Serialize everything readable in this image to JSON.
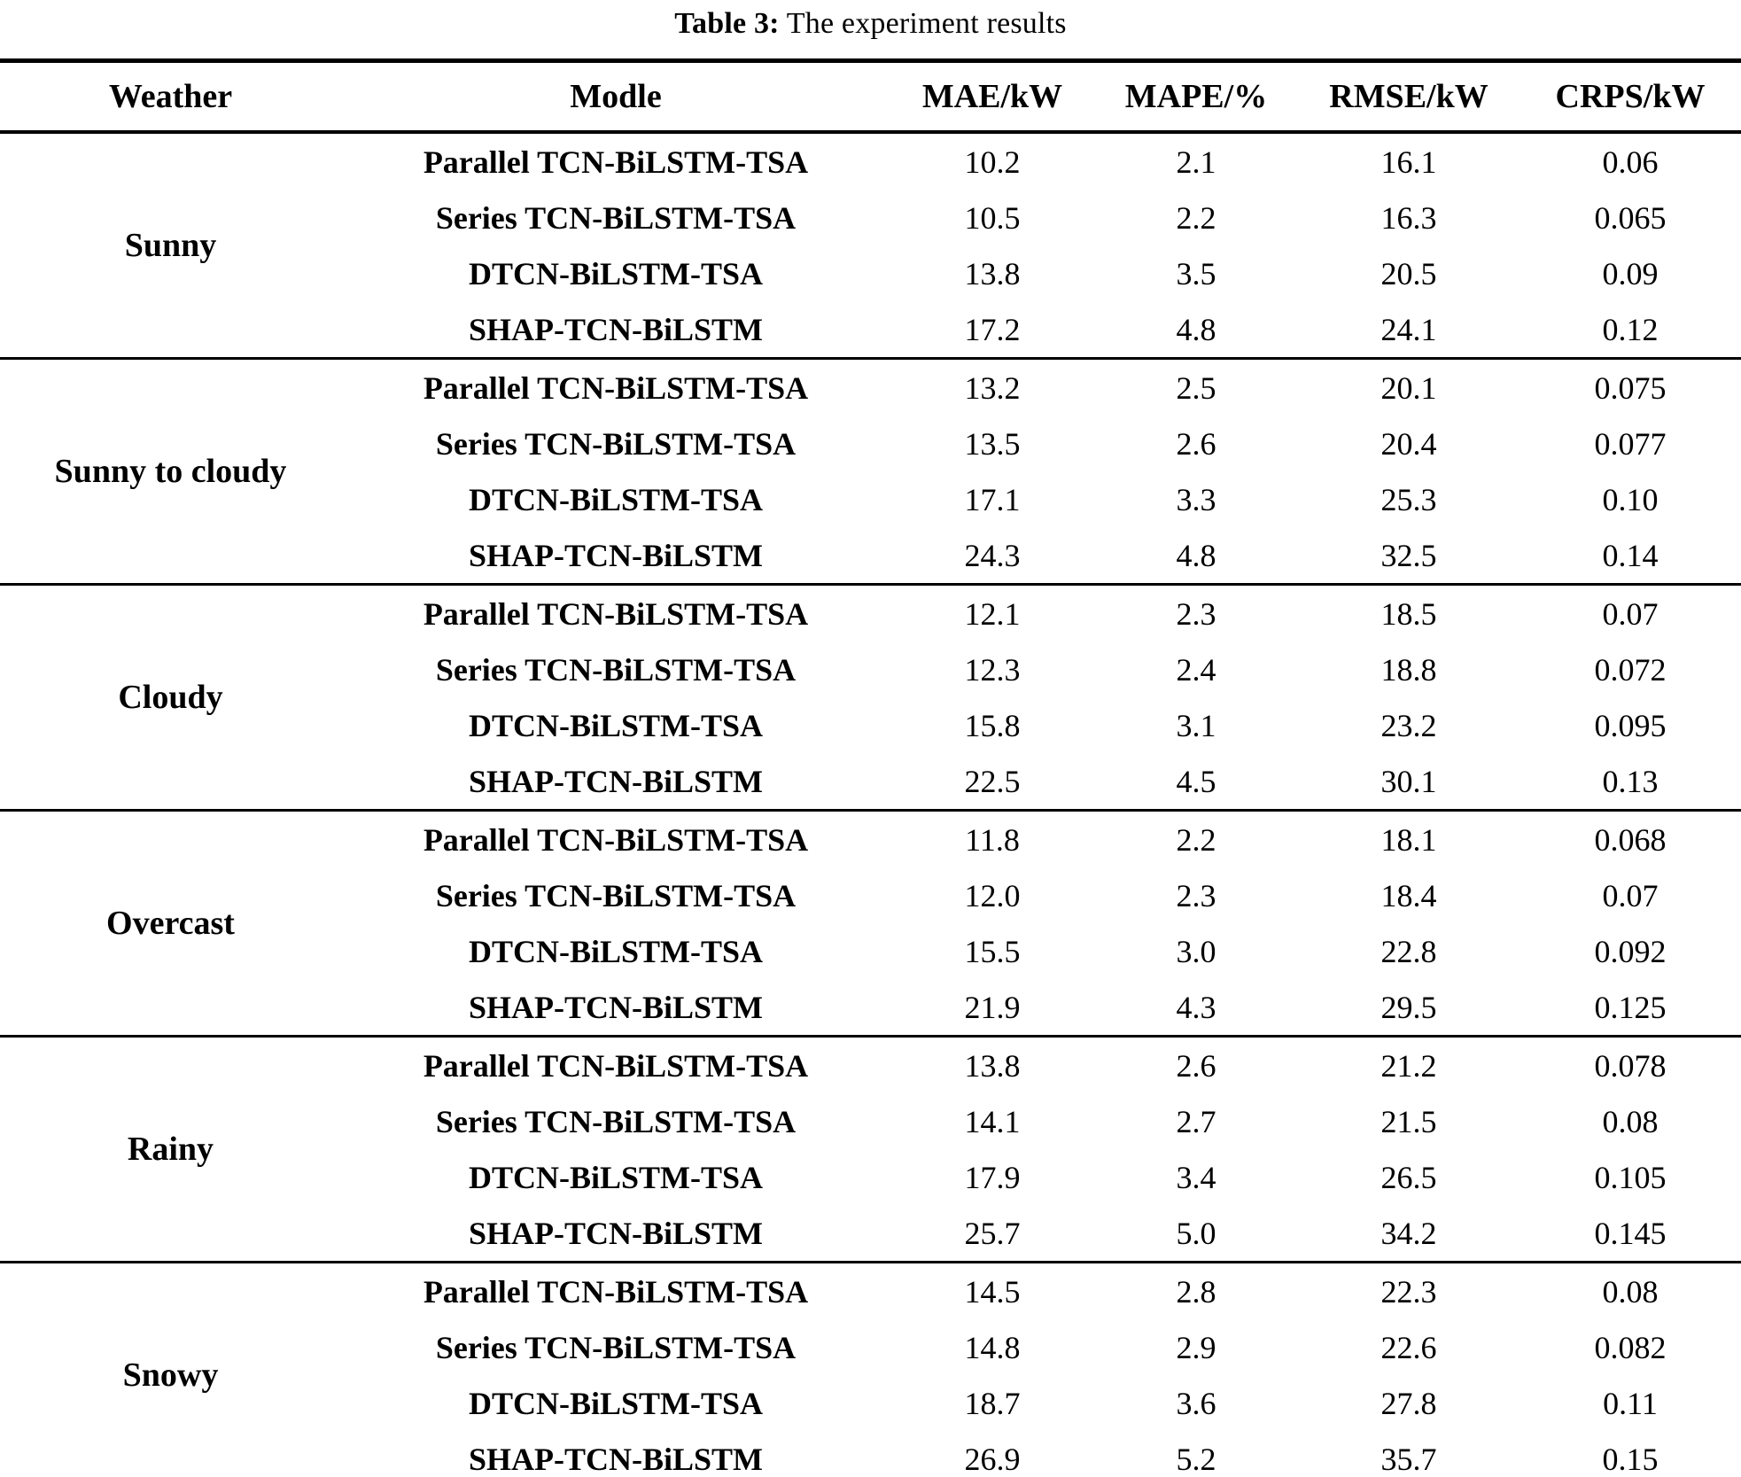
{
  "caption": {
    "label": "Table 3:",
    "text": " The experiment results"
  },
  "chart_data": {
    "type": "table",
    "title": "Table 3: The experiment results",
    "columns": [
      "Weather",
      "Modle",
      "MAE/kW",
      "MAPE/%",
      "RMSE/kW",
      "CRPS/kW"
    ],
    "groups": [
      {
        "weather": "Sunny",
        "rows": [
          {
            "model": "Parallel TCN-BiLSTM-TSA",
            "values": [
              "10.2",
              "2.1",
              "16.1",
              "0.06"
            ]
          },
          {
            "model": "Series TCN-BiLSTM-TSA",
            "values": [
              "10.5",
              "2.2",
              "16.3",
              "0.065"
            ]
          },
          {
            "model": "DTCN-BiLSTM-TSA",
            "values": [
              "13.8",
              "3.5",
              "20.5",
              "0.09"
            ]
          },
          {
            "model": "SHAP-TCN-BiLSTM",
            "values": [
              "17.2",
              "4.8",
              "24.1",
              "0.12"
            ]
          }
        ]
      },
      {
        "weather": "Sunny to cloudy",
        "rows": [
          {
            "model": "Parallel TCN-BiLSTM-TSA",
            "values": [
              "13.2",
              "2.5",
              "20.1",
              "0.075"
            ]
          },
          {
            "model": "Series TCN-BiLSTM-TSA",
            "values": [
              "13.5",
              "2.6",
              "20.4",
              "0.077"
            ]
          },
          {
            "model": "DTCN-BiLSTM-TSA",
            "values": [
              "17.1",
              "3.3",
              "25.3",
              "0.10"
            ]
          },
          {
            "model": "SHAP-TCN-BiLSTM",
            "values": [
              "24.3",
              "4.8",
              "32.5",
              "0.14"
            ]
          }
        ]
      },
      {
        "weather": "Cloudy",
        "rows": [
          {
            "model": "Parallel TCN-BiLSTM-TSA",
            "values": [
              "12.1",
              "2.3",
              "18.5",
              "0.07"
            ]
          },
          {
            "model": "Series TCN-BiLSTM-TSA",
            "values": [
              "12.3",
              "2.4",
              "18.8",
              "0.072"
            ]
          },
          {
            "model": "DTCN-BiLSTM-TSA",
            "values": [
              "15.8",
              "3.1",
              "23.2",
              "0.095"
            ]
          },
          {
            "model": "SHAP-TCN-BiLSTM",
            "values": [
              "22.5",
              "4.5",
              "30.1",
              "0.13"
            ]
          }
        ]
      },
      {
        "weather": "Overcast",
        "rows": [
          {
            "model": "Parallel TCN-BiLSTM-TSA",
            "values": [
              "11.8",
              "2.2",
              "18.1",
              "0.068"
            ]
          },
          {
            "model": "Series TCN-BiLSTM-TSA",
            "values": [
              "12.0",
              "2.3",
              "18.4",
              "0.07"
            ]
          },
          {
            "model": "DTCN-BiLSTM-TSA",
            "values": [
              "15.5",
              "3.0",
              "22.8",
              "0.092"
            ]
          },
          {
            "model": "SHAP-TCN-BiLSTM",
            "values": [
              "21.9",
              "4.3",
              "29.5",
              "0.125"
            ]
          }
        ]
      },
      {
        "weather": "Rainy",
        "rows": [
          {
            "model": "Parallel TCN-BiLSTM-TSA",
            "values": [
              "13.8",
              "2.6",
              "21.2",
              "0.078"
            ]
          },
          {
            "model": "Series TCN-BiLSTM-TSA",
            "values": [
              "14.1",
              "2.7",
              "21.5",
              "0.08"
            ]
          },
          {
            "model": "DTCN-BiLSTM-TSA",
            "values": [
              "17.9",
              "3.4",
              "26.5",
              "0.105"
            ]
          },
          {
            "model": "SHAP-TCN-BiLSTM",
            "values": [
              "25.7",
              "5.0",
              "34.2",
              "0.145"
            ]
          }
        ]
      },
      {
        "weather": "Snowy",
        "rows": [
          {
            "model": "Parallel TCN-BiLSTM-TSA",
            "values": [
              "14.5",
              "2.8",
              "22.3",
              "0.08"
            ]
          },
          {
            "model": "Series TCN-BiLSTM-TSA",
            "values": [
              "14.8",
              "2.9",
              "22.6",
              "0.082"
            ]
          },
          {
            "model": "DTCN-BiLSTM-TSA",
            "values": [
              "18.7",
              "3.6",
              "27.8",
              "0.11"
            ]
          },
          {
            "model": "SHAP-TCN-BiLSTM",
            "values": [
              "26.9",
              "5.2",
              "35.7",
              "0.15"
            ]
          }
        ]
      }
    ]
  }
}
